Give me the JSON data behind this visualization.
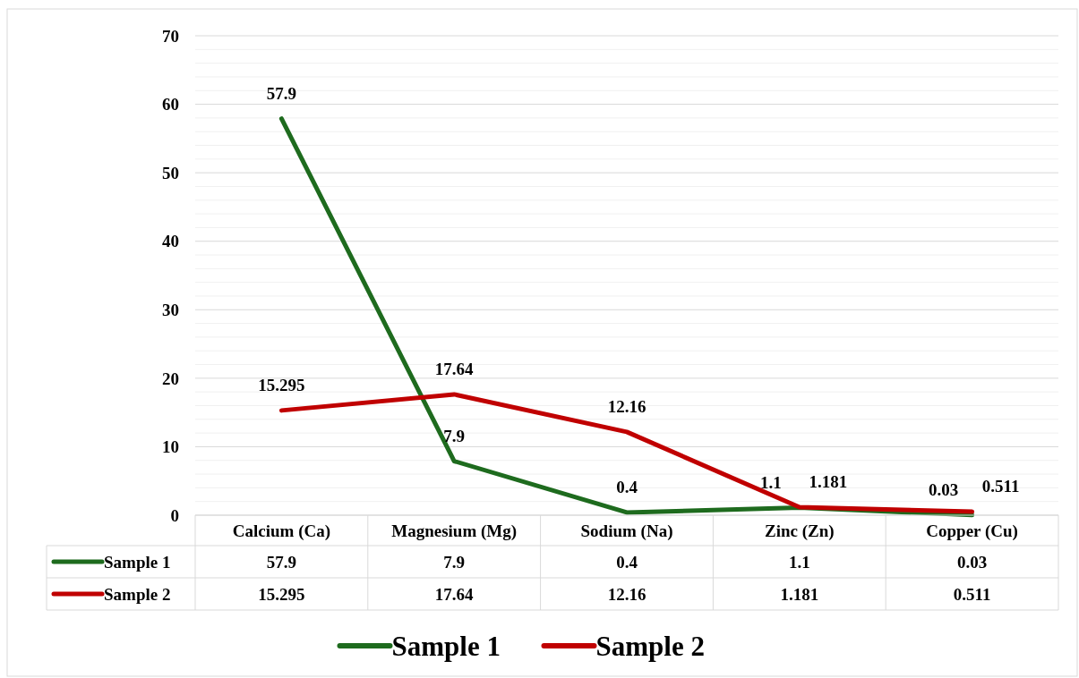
{
  "chart_data": {
    "type": "line",
    "categories": [
      "Calcium (Ca)",
      "Magnesium (Mg)",
      "Sodium (Na)",
      "Zinc (Zn)",
      "Copper (Cu)"
    ],
    "series": [
      {
        "name": "Sample 1",
        "color": "#1e6b1e",
        "values": [
          57.9,
          7.9,
          0.4,
          1.1,
          0.03
        ],
        "value_labels": [
          "57.9",
          "7.9",
          "0.4",
          "1.1",
          "0.03"
        ]
      },
      {
        "name": "Sample 2",
        "color": "#c00000",
        "values": [
          15.295,
          17.64,
          12.16,
          1.181,
          0.511
        ],
        "value_labels": [
          "15.295",
          "17.64",
          "12.16",
          "1.181",
          "0.511"
        ]
      }
    ],
    "ylim": [
      0,
      70
    ],
    "yticks": [
      0,
      {
        "value": 2,
        "label": null
      },
      {
        "value": 4,
        "label": null
      },
      {
        "value": 6,
        "label": null
      },
      {
        "value": 8,
        "label": null
      },
      10,
      {
        "value": 12,
        "label": null
      },
      {
        "value": 14,
        "label": null
      },
      {
        "value": 16,
        "label": null
      },
      {
        "value": 18,
        "label": null
      },
      20,
      {
        "value": 22,
        "label": null
      },
      {
        "value": 24,
        "label": null
      },
      {
        "value": 26,
        "label": null
      },
      {
        "value": 28,
        "label": null
      },
      30,
      {
        "value": 32,
        "label": null
      },
      {
        "value": 34,
        "label": null
      },
      {
        "value": 36,
        "label": null
      },
      {
        "value": 38,
        "label": null
      },
      40,
      {
        "value": 42,
        "label": null
      },
      {
        "value": 44,
        "label": null
      },
      {
        "value": 46,
        "label": null
      },
      {
        "value": 48,
        "label": null
      },
      50,
      {
        "value": 52,
        "label": null
      },
      {
        "value": 54,
        "label": null
      },
      {
        "value": 56,
        "label": null
      },
      {
        "value": 58,
        "label": null
      },
      60,
      {
        "value": 62,
        "label": null
      },
      {
        "value": 64,
        "label": null
      },
      {
        "value": 66,
        "label": null
      },
      {
        "value": 68,
        "label": null
      },
      70
    ],
    "annotations": [
      "57.9",
      "7.9",
      "0.4",
      "1.1",
      "0.03",
      "15.295",
      "17.64",
      "12.16",
      "1.181",
      "0.511"
    ],
    "grid": true,
    "legend": "bottom",
    "data_labels": true,
    "marker": "none",
    "line_style": "solid"
  }
}
